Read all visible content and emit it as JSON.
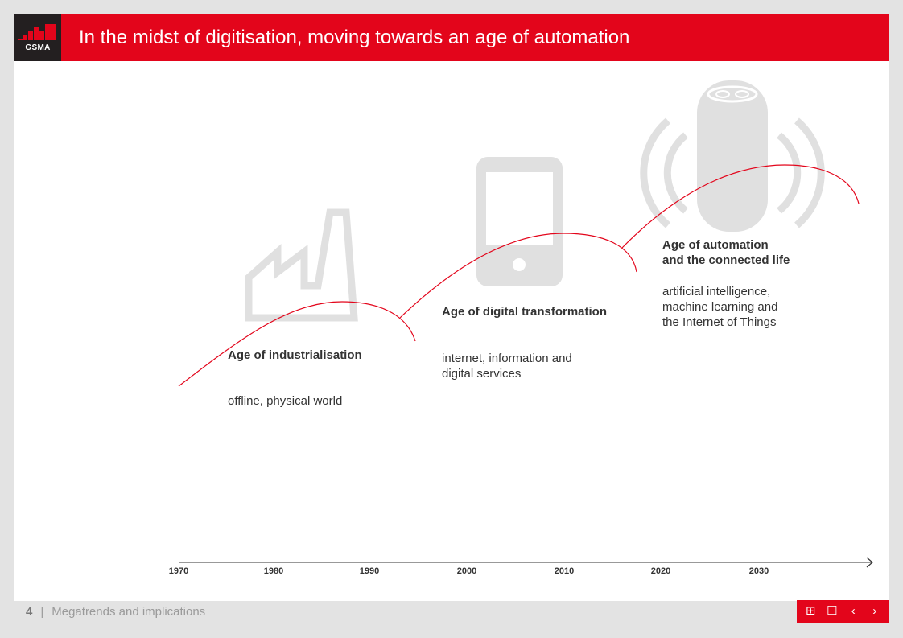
{
  "header": {
    "logo_text": "GSMA",
    "title": "In the midst of digitisation, moving towards an age of automation"
  },
  "eras": [
    {
      "title": "Age of industrialisation",
      "description": [
        "offline, physical world"
      ],
      "icon": "factory-icon"
    },
    {
      "title": "Age of digital transformation",
      "description": [
        "internet, information and",
        "digital services"
      ],
      "icon": "smartphone-icon"
    },
    {
      "title": [
        "Age of automation",
        "and the connected life"
      ],
      "description": [
        "artificial intelligence,",
        "machine learning and",
        "the Internet of Things"
      ],
      "icon": "smart-speaker-icon"
    }
  ],
  "timeline": {
    "ticks": [
      "1970",
      "1980",
      "1990",
      "2000",
      "2010",
      "2020",
      "2030"
    ]
  },
  "footer": {
    "page_number": "4",
    "separator": "|",
    "section": "Megatrends and implications"
  },
  "nav": {
    "grid": "⊞",
    "single": "☐",
    "prev": "‹",
    "next": "›"
  },
  "colors": {
    "brand_red": "#e3051b",
    "icon_grey": "#e0e0e0",
    "text": "#333333"
  }
}
